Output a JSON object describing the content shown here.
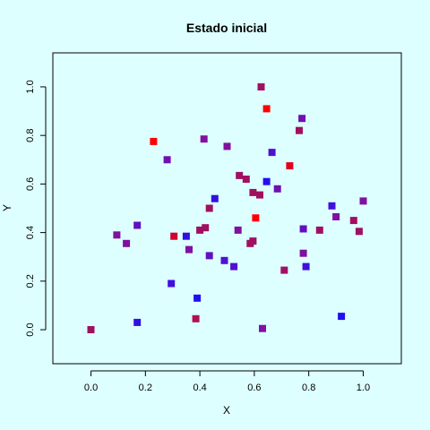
{
  "chart_data": {
    "type": "scatter",
    "title": "Estado inicial",
    "xlabel": "X",
    "ylabel": "Y",
    "xlim": [
      -0.14,
      1.14
    ],
    "ylim": [
      -0.14,
      1.14
    ],
    "xticks": [
      0.0,
      0.2,
      0.4,
      0.6,
      0.8,
      1.0
    ],
    "yticks": [
      0.0,
      0.2,
      0.4,
      0.6,
      0.8,
      1.0
    ],
    "xtick_labels": [
      "0.0",
      "0.2",
      "0.4",
      "0.6",
      "0.8",
      "1.0"
    ],
    "ytick_labels": [
      "0.0",
      "0.2",
      "0.4",
      "0.6",
      "0.8",
      "1.0"
    ],
    "grid": false,
    "marker": "filled-square",
    "points": [
      {
        "x": 0.625,
        "y": 1.0,
        "color": "#A01060"
      },
      {
        "x": 0.645,
        "y": 0.91,
        "color": "#FF0000"
      },
      {
        "x": 0.775,
        "y": 0.87,
        "color": "#7010B0"
      },
      {
        "x": 0.765,
        "y": 0.82,
        "color": "#A01060"
      },
      {
        "x": 0.23,
        "y": 0.775,
        "color": "#FF0000"
      },
      {
        "x": 0.415,
        "y": 0.785,
        "color": "#8010A0"
      },
      {
        "x": 0.5,
        "y": 0.755,
        "color": "#8010A0"
      },
      {
        "x": 0.665,
        "y": 0.73,
        "color": "#5010D0"
      },
      {
        "x": 0.28,
        "y": 0.7,
        "color": "#7010B0"
      },
      {
        "x": 0.73,
        "y": 0.675,
        "color": "#E00020"
      },
      {
        "x": 0.545,
        "y": 0.635,
        "color": "#A01060"
      },
      {
        "x": 0.57,
        "y": 0.62,
        "color": "#A01060"
      },
      {
        "x": 0.645,
        "y": 0.61,
        "color": "#2010F0"
      },
      {
        "x": 0.685,
        "y": 0.58,
        "color": "#7010B0"
      },
      {
        "x": 0.595,
        "y": 0.565,
        "color": "#A01060"
      },
      {
        "x": 0.62,
        "y": 0.555,
        "color": "#A01060"
      },
      {
        "x": 0.455,
        "y": 0.54,
        "color": "#3010E0"
      },
      {
        "x": 1.0,
        "y": 0.53,
        "color": "#8010A0"
      },
      {
        "x": 0.435,
        "y": 0.5,
        "color": "#A01060"
      },
      {
        "x": 0.885,
        "y": 0.51,
        "color": "#4010E0"
      },
      {
        "x": 0.9,
        "y": 0.465,
        "color": "#8010A0"
      },
      {
        "x": 0.605,
        "y": 0.46,
        "color": "#FF0000"
      },
      {
        "x": 0.965,
        "y": 0.45,
        "color": "#A01060"
      },
      {
        "x": 0.17,
        "y": 0.43,
        "color": "#6010C0"
      },
      {
        "x": 0.42,
        "y": 0.42,
        "color": "#A01060"
      },
      {
        "x": 0.4,
        "y": 0.41,
        "color": "#A01060"
      },
      {
        "x": 0.54,
        "y": 0.41,
        "color": "#8010A0"
      },
      {
        "x": 0.78,
        "y": 0.415,
        "color": "#6010C0"
      },
      {
        "x": 0.84,
        "y": 0.41,
        "color": "#A01060"
      },
      {
        "x": 0.985,
        "y": 0.405,
        "color": "#A01060"
      },
      {
        "x": 0.095,
        "y": 0.39,
        "color": "#8010A0"
      },
      {
        "x": 0.305,
        "y": 0.385,
        "color": "#D00030"
      },
      {
        "x": 0.35,
        "y": 0.385,
        "color": "#3010E0"
      },
      {
        "x": 0.13,
        "y": 0.355,
        "color": "#8010A0"
      },
      {
        "x": 0.585,
        "y": 0.355,
        "color": "#A01060"
      },
      {
        "x": 0.595,
        "y": 0.365,
        "color": "#A01060"
      },
      {
        "x": 0.36,
        "y": 0.33,
        "color": "#8010A0"
      },
      {
        "x": 0.78,
        "y": 0.315,
        "color": "#8010A0"
      },
      {
        "x": 0.435,
        "y": 0.305,
        "color": "#6010C0"
      },
      {
        "x": 0.49,
        "y": 0.285,
        "color": "#5010D0"
      },
      {
        "x": 0.525,
        "y": 0.26,
        "color": "#5010D0"
      },
      {
        "x": 0.71,
        "y": 0.245,
        "color": "#A01060"
      },
      {
        "x": 0.79,
        "y": 0.26,
        "color": "#4010E0"
      },
      {
        "x": 0.295,
        "y": 0.19,
        "color": "#4010E0"
      },
      {
        "x": 0.39,
        "y": 0.13,
        "color": "#2010F0"
      },
      {
        "x": 0.92,
        "y": 0.055,
        "color": "#2010F0"
      },
      {
        "x": 0.385,
        "y": 0.045,
        "color": "#B01050"
      },
      {
        "x": 0.17,
        "y": 0.03,
        "color": "#3010E0"
      },
      {
        "x": 0.0,
        "y": 0.0,
        "color": "#A01060"
      },
      {
        "x": 0.63,
        "y": 0.005,
        "color": "#8010A0"
      }
    ]
  }
}
